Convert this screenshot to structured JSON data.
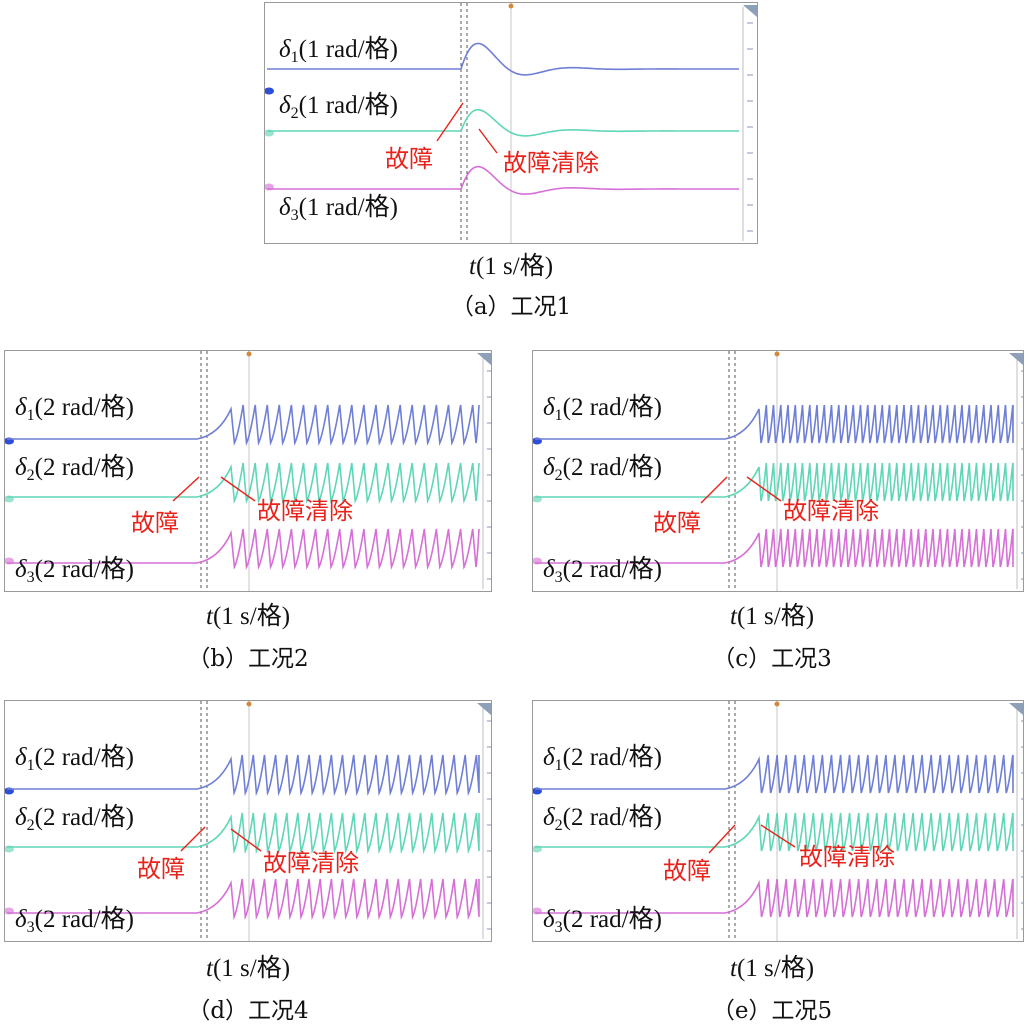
{
  "chart_data": [
    {
      "id": "a",
      "type": "line",
      "caption": "（a）工况1",
      "xlabel": {
        "var": "t",
        "unit": "(1 s/格)"
      },
      "fault_label": "故障",
      "clear_label": "故障清除",
      "behavior": "stable",
      "series": [
        {
          "sym": "δ",
          "sub": "1",
          "unit": "(1 rad/格)",
          "color": "#6f7fd6"
        },
        {
          "sym": "δ",
          "sub": "2",
          "unit": "(1 rad/格)",
          "color": "#5fd6b8"
        },
        {
          "sym": "δ",
          "sub": "3",
          "unit": "(1 rad/格)",
          "color": "#d66fd6"
        }
      ]
    },
    {
      "id": "b",
      "type": "line",
      "caption": "（b）工况2",
      "xlabel": {
        "var": "t",
        "unit": "(1 s/格)"
      },
      "fault_label": "故障",
      "clear_label": "故障清除",
      "behavior": "unstable-sawtooth",
      "cycles": 24,
      "series": [
        {
          "sym": "δ",
          "sub": "1",
          "unit": "(2 rad/格)",
          "color": "#6f7fd6"
        },
        {
          "sym": "δ",
          "sub": "2",
          "unit": "(2 rad/格)",
          "color": "#5fd6b8"
        },
        {
          "sym": "δ",
          "sub": "3",
          "unit": "(2 rad/格)",
          "color": "#d66fd6"
        }
      ]
    },
    {
      "id": "c",
      "type": "line",
      "caption": "（c）工况3",
      "xlabel": {
        "var": "t",
        "unit": "(1 s/格)"
      },
      "fault_label": "故障",
      "clear_label": "故障清除",
      "behavior": "unstable-sawtooth",
      "cycles": 40,
      "series": [
        {
          "sym": "δ",
          "sub": "1",
          "unit": "(2 rad/格)",
          "color": "#6f7fd6"
        },
        {
          "sym": "δ",
          "sub": "2",
          "unit": "(2 rad/格)",
          "color": "#5fd6b8"
        },
        {
          "sym": "δ",
          "sub": "3",
          "unit": "(2 rad/格)",
          "color": "#d66fd6"
        }
      ]
    },
    {
      "id": "d",
      "type": "line",
      "caption": "（d）工况4",
      "xlabel": {
        "var": "t",
        "unit": "(1 s/格)"
      },
      "fault_label": "故障",
      "clear_label": "故障清除",
      "behavior": "unstable-sawtooth",
      "cycles": 26,
      "series": [
        {
          "sym": "δ",
          "sub": "1",
          "unit": "(2 rad/格)",
          "color": "#6f7fd6"
        },
        {
          "sym": "δ",
          "sub": "2",
          "unit": "(2 rad/格)",
          "color": "#5fd6b8"
        },
        {
          "sym": "δ",
          "sub": "3",
          "unit": "(2 rad/格)",
          "color": "#d66fd6"
        }
      ]
    },
    {
      "id": "e",
      "type": "line",
      "caption": "（e）工况5",
      "xlabel": {
        "var": "t",
        "unit": "(1 s/格)"
      },
      "fault_label": "故障",
      "clear_label": "故障清除",
      "behavior": "unstable-sawtooth",
      "cycles": 32,
      "series": [
        {
          "sym": "δ",
          "sub": "1",
          "unit": "(2 rad/格)",
          "color": "#6f7fd6"
        },
        {
          "sym": "δ",
          "sub": "2",
          "unit": "(2 rad/格)",
          "color": "#5fd6b8"
        },
        {
          "sym": "δ",
          "sub": "3",
          "unit": "(2 rad/格)",
          "color": "#d66fd6"
        }
      ]
    }
  ]
}
